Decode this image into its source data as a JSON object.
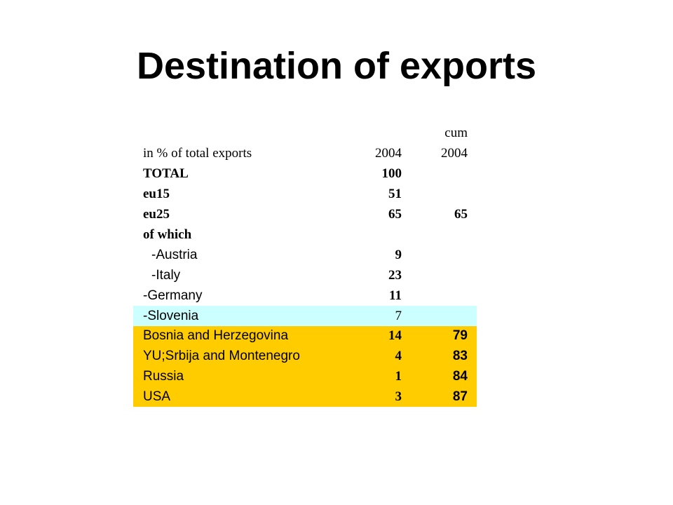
{
  "title": "Destination of exports",
  "table": {
    "header_cum": "cum",
    "header_caption": "in % of total exports",
    "header_year": "2004",
    "header_cum_year": "2004",
    "rows": [
      {
        "label": "TOTAL",
        "value_2004": "100",
        "value_cum": ""
      },
      {
        "label": "eu15",
        "value_2004": "51",
        "value_cum": ""
      },
      {
        "label": "eu25",
        "value_2004": "65",
        "value_cum": "65"
      },
      {
        "label": "of which",
        "value_2004": "",
        "value_cum": ""
      },
      {
        "label": "-Austria",
        "value_2004": "9",
        "value_cum": ""
      },
      {
        "label": "-Italy",
        "value_2004": "23",
        "value_cum": ""
      },
      {
        "label": "-Germany",
        "value_2004": "11",
        "value_cum": ""
      },
      {
        "label": "-Slovenia",
        "value_2004": "7",
        "value_cum": ""
      },
      {
        "label": "Bosnia and Herzegovina",
        "value_2004": "14",
        "value_cum": "79"
      },
      {
        "label": "YU;Srbija and Montenegro",
        "value_2004": "4",
        "value_cum": "83"
      },
      {
        "label": "Russia",
        "value_2004": "1",
        "value_cum": "84"
      },
      {
        "label": "USA",
        "value_2004": "3",
        "value_cum": "87"
      }
    ]
  },
  "colors": {
    "slovenia_highlight": "#ccffff",
    "cumulative_highlight": "#ffcc00"
  }
}
